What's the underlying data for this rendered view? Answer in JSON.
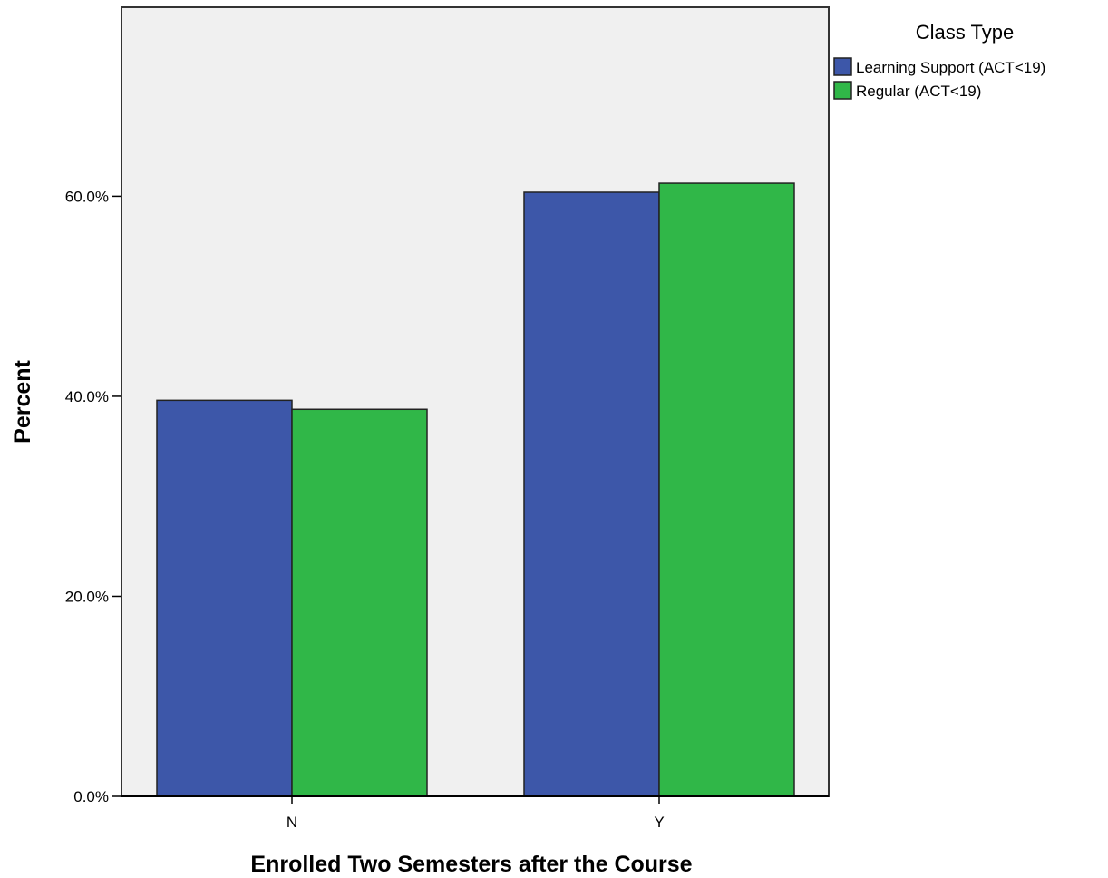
{
  "chart_data": {
    "type": "bar",
    "title": "",
    "xlabel": "Enrolled Two Semesters after the Course",
    "ylabel": "Percent",
    "categories": [
      "N",
      "Y"
    ],
    "series": [
      {
        "name": "Learning Support (ACT<19)",
        "color": "#3d57a9",
        "values": [
          39.6,
          60.4
        ]
      },
      {
        "name": "Regular (ACT<19)",
        "color": "#30b748",
        "values": [
          38.7,
          61.3
        ]
      }
    ],
    "ylim": [
      0,
      78.9
    ],
    "yticks": [
      0,
      20,
      40,
      60
    ],
    "ytick_labels": [
      "0.0%",
      "20.0%",
      "40.0%",
      "60.0%"
    ],
    "legend": {
      "title": "Class Type",
      "placement": "right"
    },
    "grid": false,
    "plot_background": "#f0f0f0"
  }
}
